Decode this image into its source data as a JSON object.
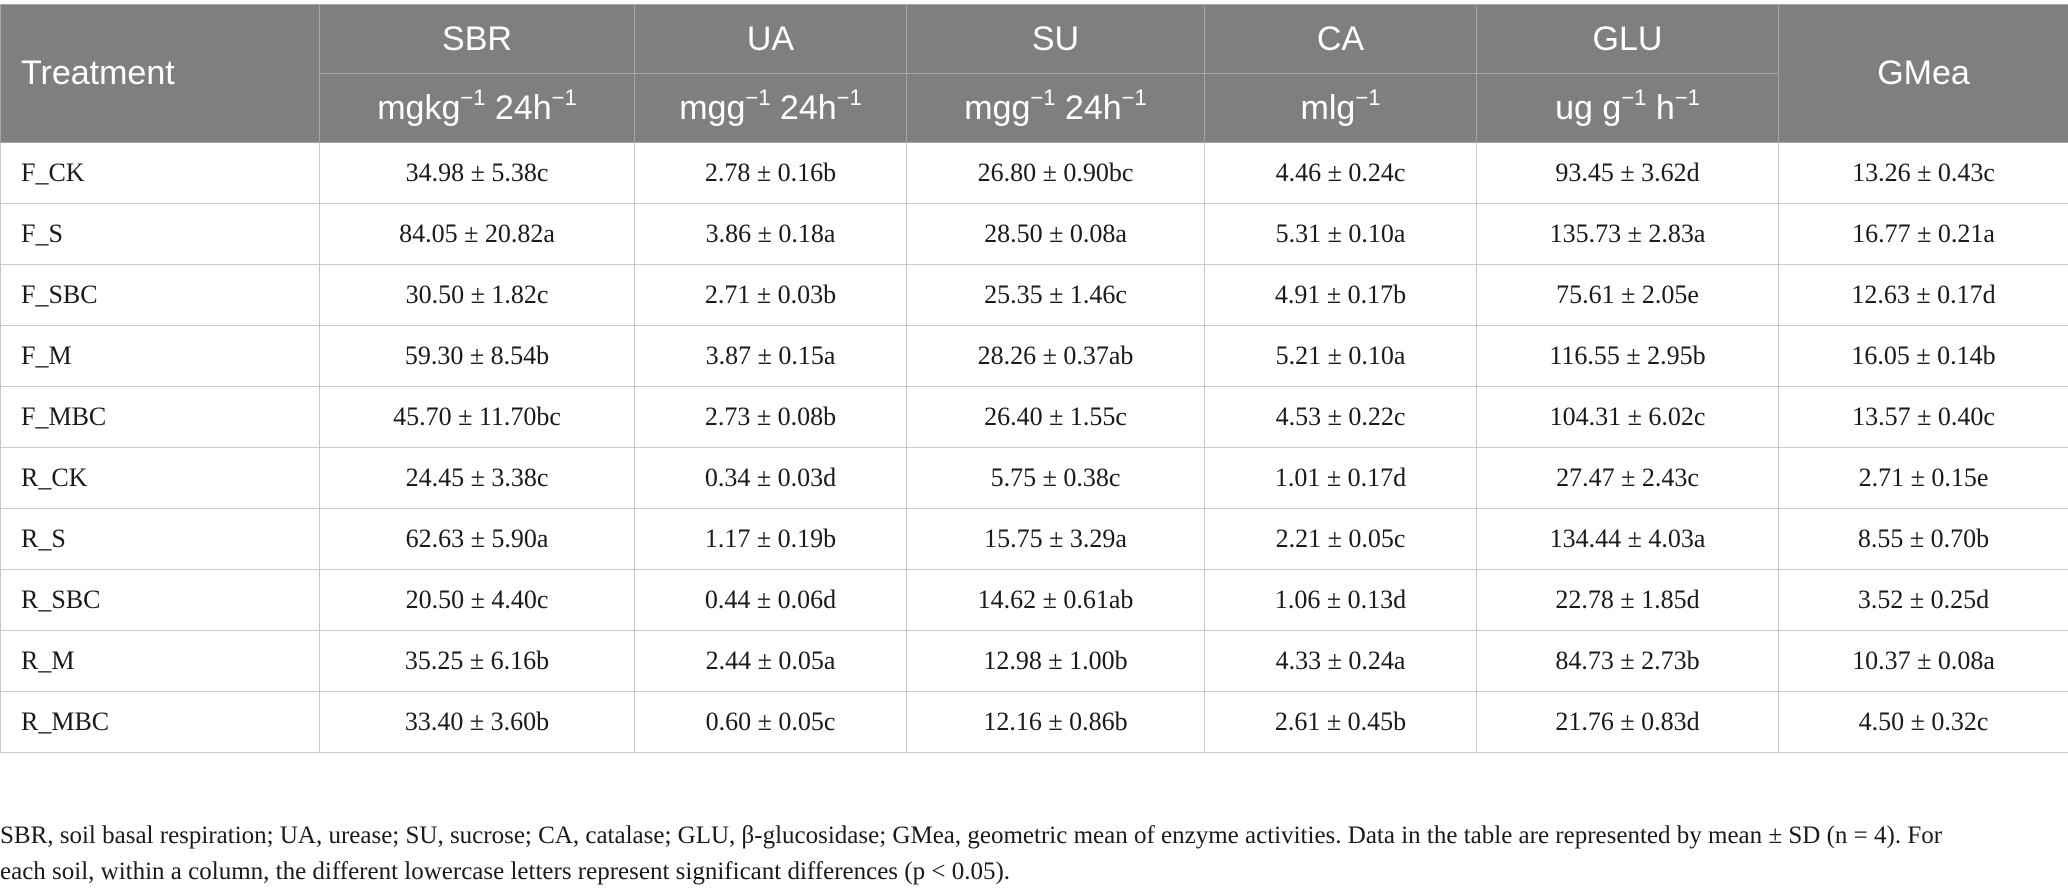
{
  "table": {
    "header": {
      "treatment": "Treatment",
      "gmea": "GMea",
      "columns": [
        {
          "name": "SBR",
          "unit_base": "mgkg",
          "unit_sup1": "−1",
          "unit_mid": " 24h",
          "unit_sup2": "−1"
        },
        {
          "name": "UA",
          "unit_base": "mgg",
          "unit_sup1": "−1",
          "unit_mid": " 24h",
          "unit_sup2": "−1"
        },
        {
          "name": "SU",
          "unit_base": "mgg",
          "unit_sup1": "−1",
          "unit_mid": " 24h",
          "unit_sup2": "−1"
        },
        {
          "name": "CA",
          "unit_base": "mlg",
          "unit_sup1": "−1",
          "unit_mid": "",
          "unit_sup2": ""
        },
        {
          "name": "GLU",
          "unit_base": "ug g",
          "unit_sup1": "−1",
          "unit_mid": " h",
          "unit_sup2": "−1"
        }
      ]
    },
    "rows": [
      {
        "treatment": "F_CK",
        "sbr": "34.98 ± 5.38c",
        "ua": "2.78 ± 0.16b",
        "su": "26.80 ± 0.90bc",
        "ca": "4.46 ± 0.24c",
        "glu": "93.45 ± 3.62d",
        "gmea": "13.26 ± 0.43c"
      },
      {
        "treatment": "F_S",
        "sbr": "84.05 ± 20.82a",
        "ua": "3.86 ± 0.18a",
        "su": "28.50 ± 0.08a",
        "ca": "5.31 ± 0.10a",
        "glu": "135.73 ± 2.83a",
        "gmea": "16.77 ± 0.21a"
      },
      {
        "treatment": "F_SBC",
        "sbr": "30.50 ± 1.82c",
        "ua": "2.71 ± 0.03b",
        "su": "25.35 ± 1.46c",
        "ca": "4.91 ± 0.17b",
        "glu": "75.61 ± 2.05e",
        "gmea": "12.63 ± 0.17d"
      },
      {
        "treatment": "F_M",
        "sbr": "59.30 ± 8.54b",
        "ua": "3.87 ± 0.15a",
        "su": "28.26 ± 0.37ab",
        "ca": "5.21 ± 0.10a",
        "glu": "116.55 ± 2.95b",
        "gmea": "16.05 ± 0.14b"
      },
      {
        "treatment": "F_MBC",
        "sbr": "45.70 ± 11.70bc",
        "ua": "2.73 ± 0.08b",
        "su": "26.40 ± 1.55c",
        "ca": "4.53 ± 0.22c",
        "glu": "104.31 ± 6.02c",
        "gmea": "13.57 ± 0.40c"
      },
      {
        "treatment": "R_CK",
        "sbr": "24.45 ± 3.38c",
        "ua": "0.34 ± 0.03d",
        "su": "5.75 ± 0.38c",
        "ca": "1.01 ± 0.17d",
        "glu": "27.47 ± 2.43c",
        "gmea": "2.71 ± 0.15e"
      },
      {
        "treatment": "R_S",
        "sbr": "62.63 ± 5.90a",
        "ua": "1.17 ± 0.19b",
        "su": "15.75 ± 3.29a",
        "ca": "2.21 ± 0.05c",
        "glu": "134.44 ± 4.03a",
        "gmea": "8.55 ± 0.70b"
      },
      {
        "treatment": "R_SBC",
        "sbr": "20.50 ± 4.40c",
        "ua": "0.44 ± 0.06d",
        "su": "14.62 ± 0.61ab",
        "ca": "1.06 ± 0.13d",
        "glu": "22.78 ± 1.85d",
        "gmea": "3.52 ± 0.25d"
      },
      {
        "treatment": "R_M",
        "sbr": "35.25 ± 6.16b",
        "ua": "2.44 ± 0.05a",
        "su": "12.98 ± 1.00b",
        "ca": "4.33 ± 0.24a",
        "glu": "84.73 ± 2.73b",
        "gmea": "10.37 ± 0.08a"
      },
      {
        "treatment": "R_MBC",
        "sbr": "33.40 ± 3.60b",
        "ua": "0.60 ± 0.05c",
        "su": "12.16 ± 0.86b",
        "ca": "2.61 ± 0.45b",
        "glu": "21.76 ± 0.83d",
        "gmea": "4.50 ± 0.32c"
      }
    ]
  },
  "footnote": {
    "line1": "SBR, soil basal respiration; UA, urease; SU, sucrose; CA, catalase; GLU, β-glucosidase; GMea, geometric mean of enzyme activities. Data in the table are represented by mean ± SD (n = 4). For",
    "line2": "each soil, within a column, the different lowercase letters represent significant differences (p < 0.05)."
  }
}
